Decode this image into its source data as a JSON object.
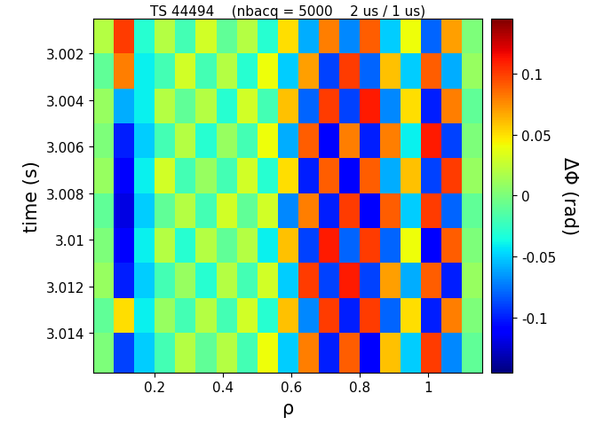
{
  "chart_data": {
    "type": "heatmap",
    "title": "TS 44494    (nbacq = 5000    2 us / 1 us)",
    "x_label": "ρ",
    "y_label": "time (s)",
    "xlim": [
      0.02,
      1.16
    ],
    "xticks": [
      0.2,
      0.4,
      0.6,
      0.8,
      1
    ],
    "ylim": [
      3.0157,
      3.0005
    ],
    "yticks": [
      3.002,
      3.004,
      3.006,
      3.008,
      3.01,
      3.012,
      3.014
    ],
    "x_edges": [
      0.02,
      0.08,
      0.14,
      0.2,
      0.26,
      0.32,
      0.38,
      0.44,
      0.5,
      0.56,
      0.62,
      0.68,
      0.74,
      0.8,
      0.86,
      0.92,
      0.98,
      1.04,
      1.1,
      1.16
    ],
    "y_edges": [
      3.0005,
      3.002,
      3.0035,
      3.005,
      3.0065,
      3.008,
      3.0095,
      3.011,
      3.0125,
      3.014,
      3.0157
    ],
    "cells": [
      [
        0.02,
        0.1,
        -0.03,
        0.02,
        -0.02,
        0.03,
        -0.01,
        0.02,
        -0.03,
        0.05,
        -0.06,
        0.08,
        -0.07,
        0.09,
        -0.05,
        0.04,
        -0.08,
        0.07,
        0.0
      ],
      [
        -0.01,
        0.08,
        -0.04,
        -0.02,
        0.03,
        -0.02,
        0.02,
        -0.03,
        0.04,
        -0.05,
        0.07,
        -0.09,
        0.1,
        -0.08,
        0.06,
        -0.05,
        0.09,
        -0.06,
        0.01
      ],
      [
        0.01,
        -0.06,
        -0.04,
        0.02,
        -0.01,
        0.02,
        -0.03,
        0.03,
        -0.02,
        0.06,
        -0.08,
        0.1,
        -0.09,
        0.11,
        -0.07,
        0.05,
        -0.1,
        0.08,
        -0.01
      ],
      [
        0.0,
        -0.1,
        -0.05,
        -0.02,
        0.02,
        -0.03,
        0.01,
        -0.02,
        0.04,
        -0.06,
        0.09,
        -0.11,
        0.08,
        -0.1,
        0.08,
        -0.04,
        0.11,
        -0.09,
        0.0
      ],
      [
        0.01,
        -0.11,
        -0.04,
        0.03,
        -0.02,
        0.01,
        -0.02,
        0.03,
        -0.03,
        0.05,
        -0.1,
        0.09,
        -0.11,
        0.09,
        -0.06,
        0.06,
        -0.09,
        0.1,
        0.01
      ],
      [
        -0.01,
        -0.12,
        -0.05,
        -0.01,
        0.02,
        -0.02,
        0.03,
        -0.01,
        0.03,
        -0.07,
        0.08,
        -0.1,
        0.1,
        -0.11,
        0.09,
        -0.05,
        0.1,
        -0.08,
        -0.01
      ],
      [
        0.0,
        -0.11,
        -0.04,
        0.02,
        -0.03,
        0.02,
        -0.01,
        0.02,
        -0.04,
        0.06,
        -0.09,
        0.11,
        -0.08,
        0.1,
        -0.08,
        0.04,
        -0.11,
        0.09,
        0.0
      ],
      [
        0.01,
        -0.1,
        -0.05,
        -0.02,
        0.01,
        -0.03,
        0.02,
        -0.02,
        0.03,
        -0.05,
        0.1,
        -0.09,
        0.11,
        -0.09,
        0.07,
        -0.06,
        0.09,
        -0.1,
        0.01
      ],
      [
        -0.01,
        0.05,
        -0.04,
        0.01,
        -0.02,
        0.02,
        -0.02,
        0.03,
        -0.03,
        0.06,
        -0.07,
        0.1,
        -0.1,
        0.1,
        -0.08,
        0.05,
        -0.1,
        0.08,
        0.0
      ],
      [
        0.0,
        -0.09,
        -0.05,
        -0.02,
        0.02,
        -0.01,
        0.02,
        -0.02,
        0.04,
        -0.05,
        0.08,
        -0.1,
        0.09,
        -0.11,
        0.06,
        -0.05,
        0.1,
        -0.07,
        -0.01
      ]
    ],
    "colorbar": {
      "label": "ΔΦ (rad)",
      "lim": [
        -0.145,
        0.145
      ],
      "ticks": [
        -0.1,
        -0.05,
        0,
        0.05,
        0.1
      ]
    }
  }
}
